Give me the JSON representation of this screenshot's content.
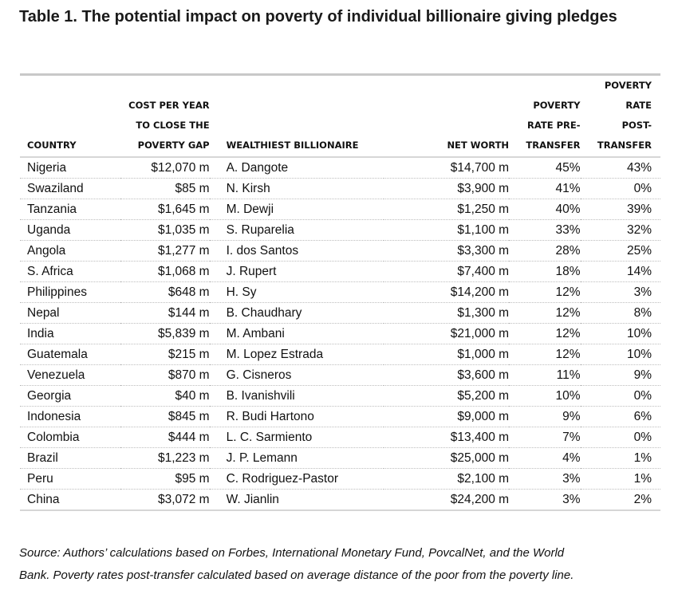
{
  "title": "Table 1. The potential impact on poverty of individual billionaire giving pledges",
  "headers": {
    "country": [
      "COUNTRY"
    ],
    "cost": [
      "COST PER YEAR",
      "TO CLOSE THE",
      "POVERTY GAP"
    ],
    "billionaire": [
      "WEALTHIEST BILLIONAIRE"
    ],
    "net_worth": [
      "NET WORTH"
    ],
    "pre": [
      "POVERTY",
      "RATE PRE-",
      "TRANSFER"
    ],
    "post": [
      "POVERTY",
      "RATE",
      "POST-",
      "TRANSFER"
    ]
  },
  "rows": [
    [
      "Nigeria",
      "$12,070 m",
      "A. Dangote",
      "$14,700 m",
      "45%",
      "43%"
    ],
    [
      "Swaziland",
      "$85 m",
      "N. Kirsh",
      "$3,900 m",
      "41%",
      "0%"
    ],
    [
      "Tanzania",
      "$1,645 m",
      "M. Dewji",
      "$1,250 m",
      "40%",
      "39%"
    ],
    [
      "Uganda",
      "$1,035 m",
      "S. Ruparelia",
      "$1,100 m",
      "33%",
      "32%"
    ],
    [
      "Angola",
      "$1,277 m",
      "I. dos Santos",
      "$3,300 m",
      "28%",
      "25%"
    ],
    [
      "S. Africa",
      "$1,068 m",
      "J. Rupert",
      "$7,400 m",
      "18%",
      "14%"
    ],
    [
      "Philippines",
      "$648 m",
      "H. Sy",
      "$14,200 m",
      "12%",
      "3%"
    ],
    [
      "Nepal",
      "$144 m",
      "B. Chaudhary",
      "$1,300 m",
      "12%",
      "8%"
    ],
    [
      "India",
      "$5,839 m",
      "M. Ambani",
      "$21,000 m",
      "12%",
      "10%"
    ],
    [
      "Guatemala",
      "$215 m",
      "M. Lopez Estrada",
      "$1,000 m",
      "12%",
      "10%"
    ],
    [
      "Venezuela",
      "$870 m",
      "G. Cisneros",
      "$3,600 m",
      "11%",
      "9%"
    ],
    [
      "Georgia",
      "$40 m",
      "B. Ivanishvili",
      "$5,200 m",
      "10%",
      "0%"
    ],
    [
      "Indonesia",
      "$845 m",
      "R. Budi Hartono",
      "$9,000 m",
      "9%",
      "6%"
    ],
    [
      "Colombia",
      "$444 m",
      "L. C. Sarmiento",
      "$13,400 m",
      "7%",
      "0%"
    ],
    [
      "Brazil",
      "$1,223 m",
      "J. P. Lemann",
      "$25,000 m",
      "4%",
      "1%"
    ],
    [
      "Peru",
      "$95 m",
      "C. Rodriguez-Pastor",
      "$2,100 m",
      "3%",
      "1%"
    ],
    [
      "China",
      "$3,072 m",
      "W. Jianlin",
      "$24,200 m",
      "3%",
      "2%"
    ]
  ],
  "source": [
    "Source: Authors’ calculations based on Forbes, International Monetary Fund, PovcalNet, and the World",
    "Bank. Poverty rates post-transfer calculated based on average distance of the poor from the poverty line."
  ]
}
